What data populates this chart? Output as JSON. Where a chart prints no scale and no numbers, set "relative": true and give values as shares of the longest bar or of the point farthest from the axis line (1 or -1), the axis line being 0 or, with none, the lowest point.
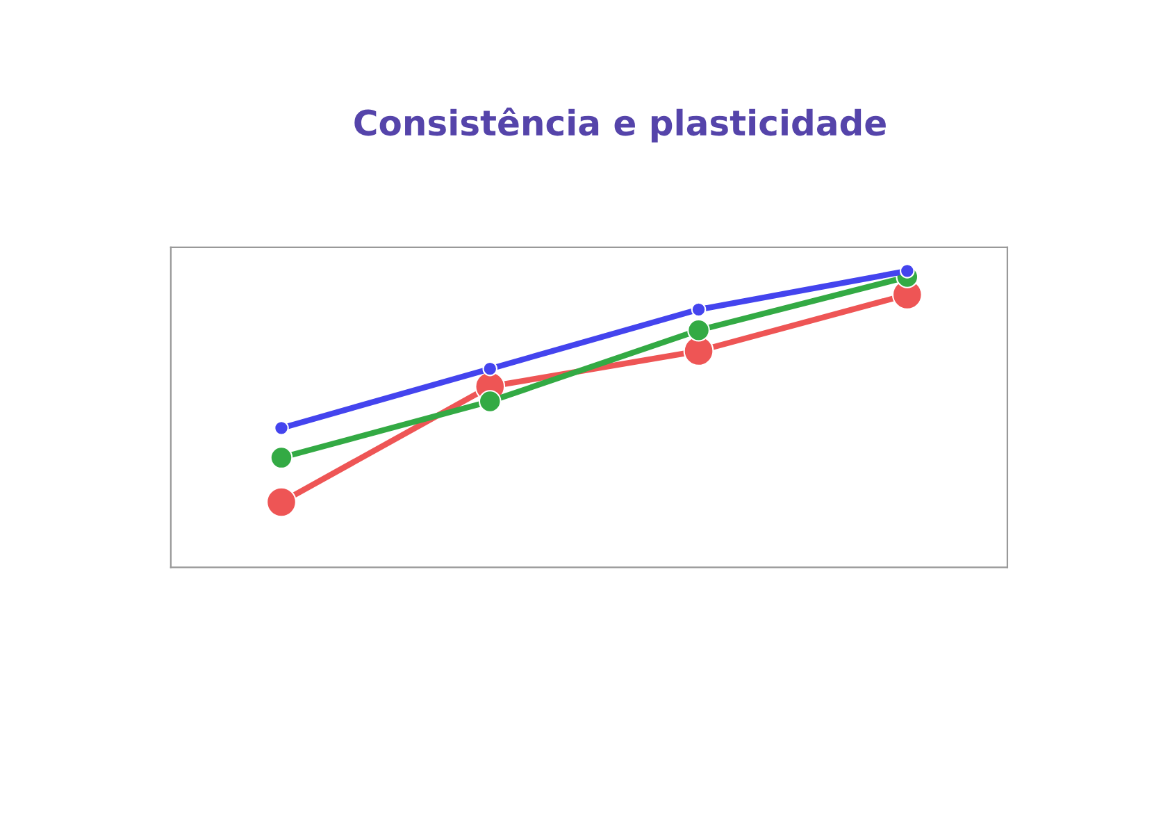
{
  "chart_data": {
    "type": "line",
    "title": "Consistência e plasticidade",
    "relative": true,
    "marker": "circle",
    "line_style": "solid",
    "categories": [
      null,
      null,
      null,
      null
    ],
    "series": [
      {
        "color": "#ee5555",
        "values": [
          0.22,
          0.61,
          0.73,
          0.92
        ]
      },
      {
        "color": "#33aa44",
        "values": [
          0.37,
          0.56,
          0.8,
          0.98
        ]
      },
      {
        "color": "#4444ee",
        "values": [
          0.47,
          0.67,
          0.87,
          1.0
        ]
      }
    ]
  }
}
